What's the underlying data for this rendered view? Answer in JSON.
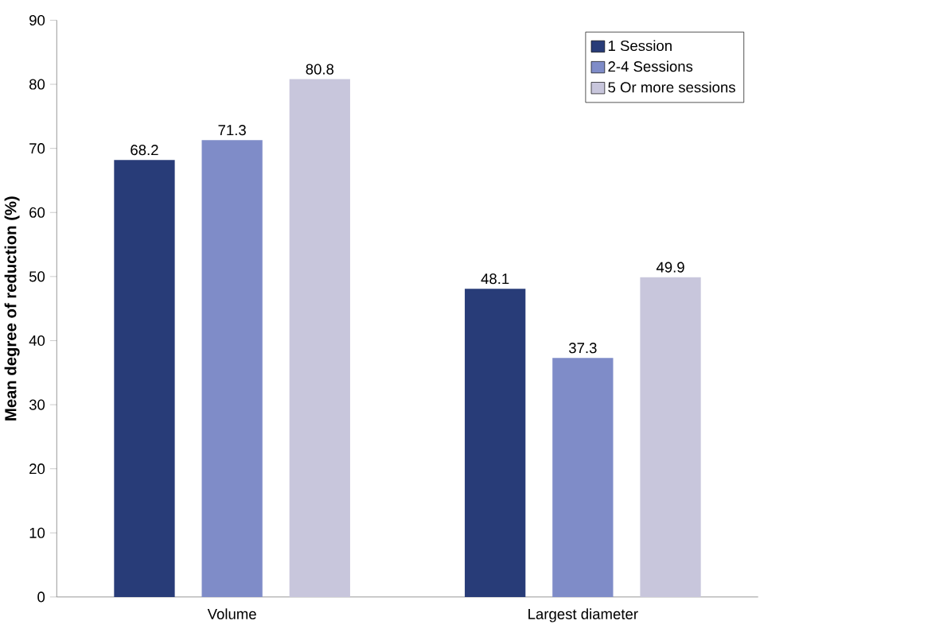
{
  "chart_data": {
    "type": "bar",
    "ylabel": "Mean degree of reduction (%)",
    "categories": [
      "Volume",
      "Largest diameter"
    ],
    "series": [
      {
        "name": "1 Session",
        "color": "#283c78",
        "values": [
          68.2,
          48.1
        ]
      },
      {
        "name": "2-4 Sessions",
        "color": "#7f8cc8",
        "values": [
          71.3,
          37.3
        ]
      },
      {
        "name": "5 Or more sessions",
        "color": "#c8c6dc",
        "values": [
          80.8,
          49.9
        ]
      }
    ],
    "ylim": [
      0,
      90
    ],
    "yticks": [
      0,
      10,
      20,
      30,
      40,
      50,
      60,
      70,
      80,
      90
    ],
    "data_labels": true,
    "legend": "top right",
    "grid": false
  }
}
